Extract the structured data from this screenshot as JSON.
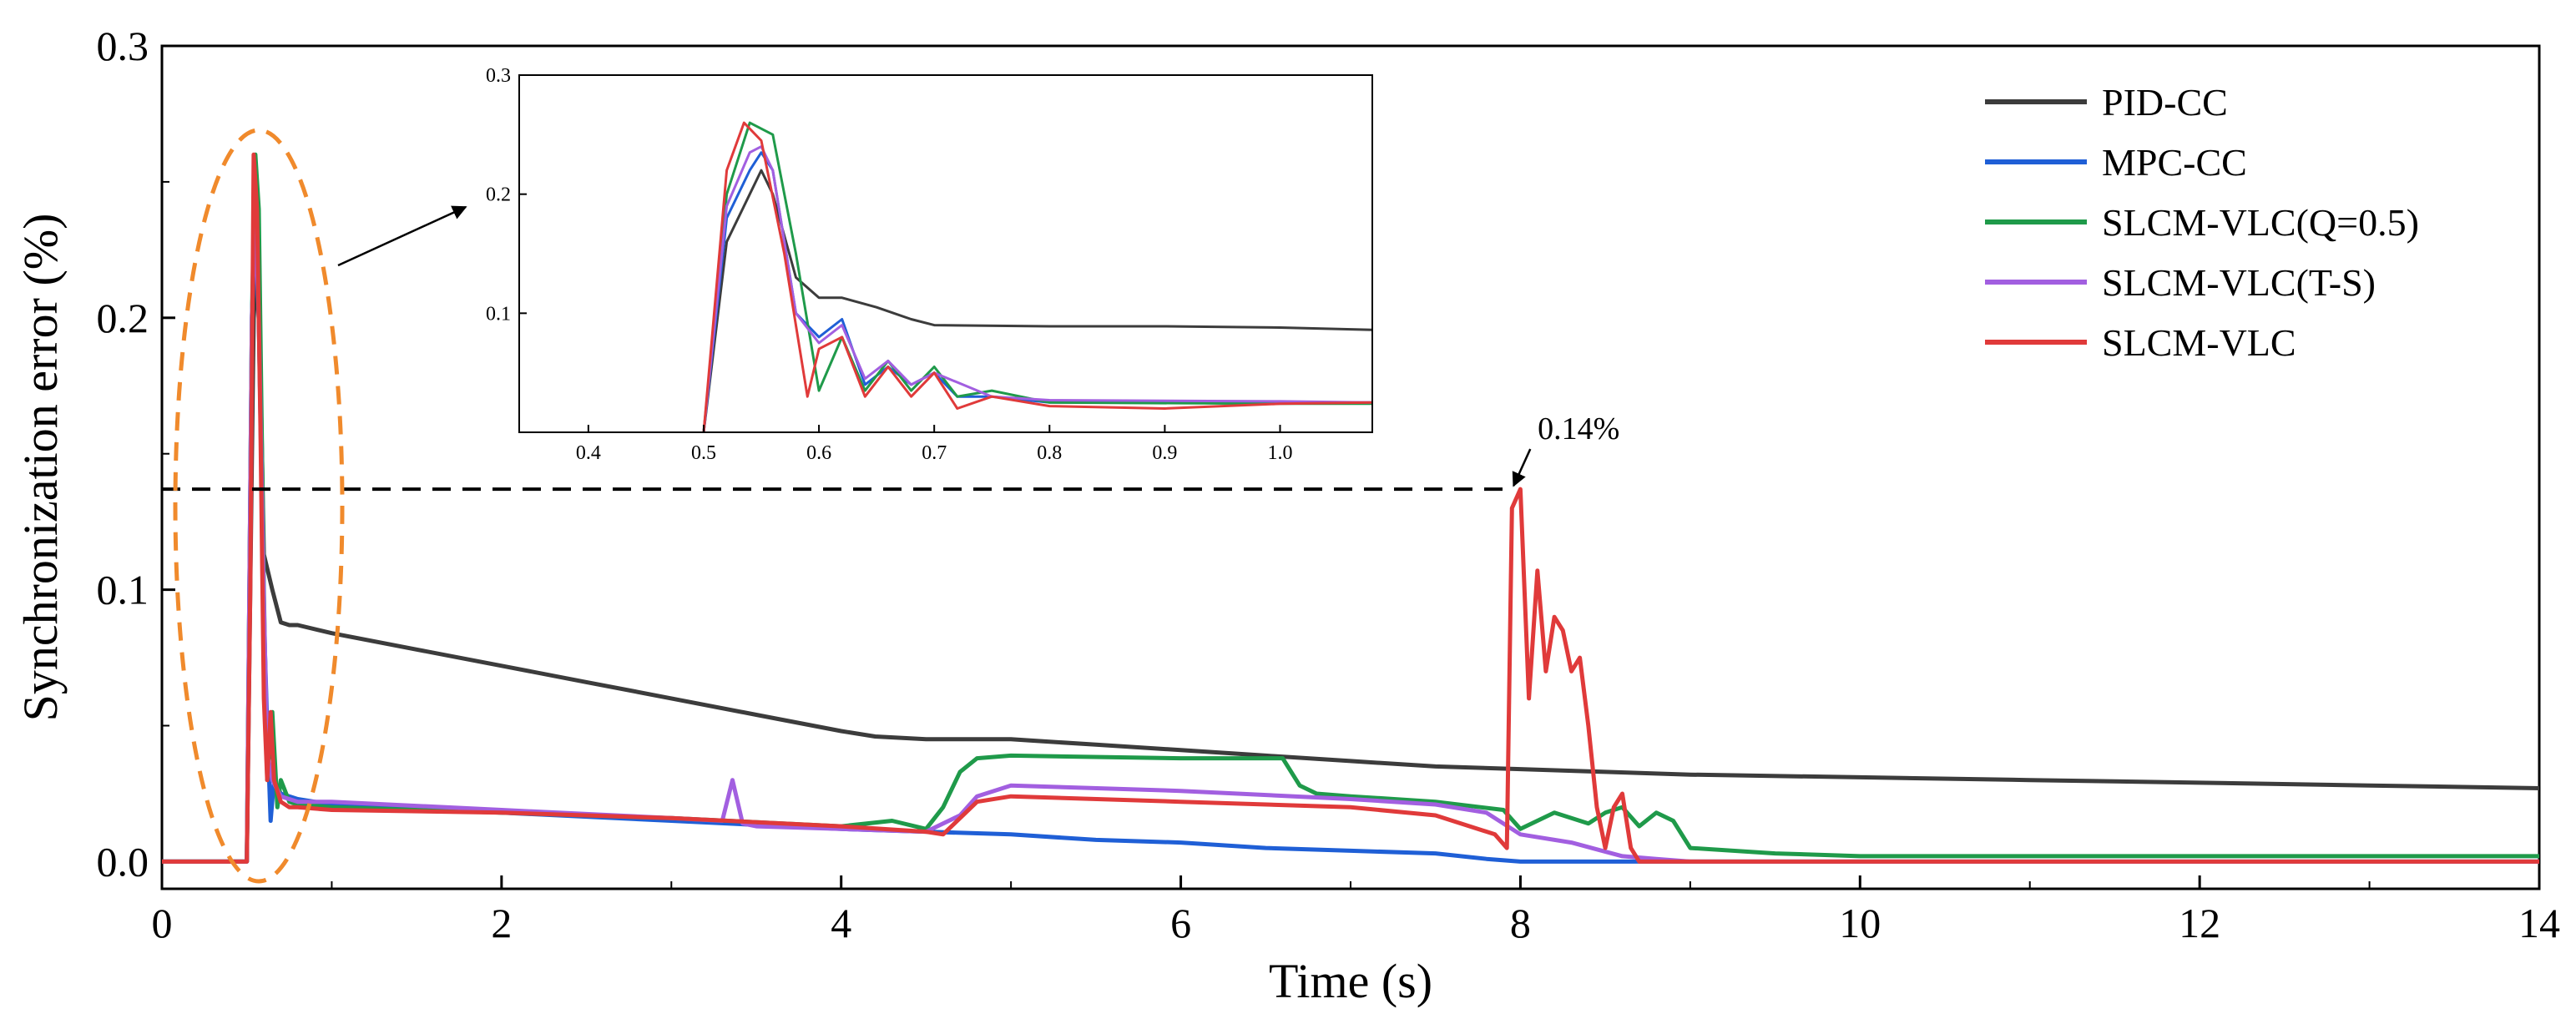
{
  "chart_data": [
    {
      "id": "main",
      "type": "line",
      "title": "",
      "xlabel": "Time (s)",
      "ylabel": "Synchronization error (%)",
      "xlim": [
        0,
        14
      ],
      "ylim": [
        -0.01,
        0.3
      ],
      "xticks": [
        0,
        2,
        4,
        6,
        8,
        10,
        12,
        14
      ],
      "xtick_labels": [
        "0",
        "2",
        "4",
        "6",
        "8",
        "10",
        "12",
        "14"
      ],
      "yticks": [
        0.0,
        0.1,
        0.2,
        0.3
      ],
      "ytick_labels": [
        "0.0",
        "0.1",
        "0.2",
        "0.3"
      ],
      "grid": false,
      "legend_position": "top-right",
      "series": [
        {
          "name": "PID-CC",
          "color": "#3c3c3c",
          "x": [
            0,
            0.5,
            0.52,
            0.54,
            0.56,
            0.58,
            0.6,
            0.65,
            0.7,
            0.75,
            0.8,
            1.0,
            1.5,
            2.0,
            2.5,
            3.0,
            3.5,
            4.0,
            4.2,
            4.5,
            5.0,
            5.5,
            6.0,
            6.5,
            7.0,
            7.5,
            8.0,
            8.5,
            9.0,
            10.0,
            11.0,
            12.0,
            13.0,
            14.0
          ],
          "y": [
            0,
            0,
            0.1,
            0.2,
            0.22,
            0.18,
            0.113,
            0.1,
            0.088,
            0.087,
            0.087,
            0.084,
            0.078,
            0.072,
            0.066,
            0.06,
            0.054,
            0.048,
            0.046,
            0.045,
            0.045,
            0.043,
            0.041,
            0.039,
            0.037,
            0.035,
            0.034,
            0.033,
            0.032,
            0.031,
            0.03,
            0.029,
            0.028,
            0.027
          ]
        },
        {
          "name": "MPC-CC",
          "color": "#1f5fd6",
          "x": [
            0,
            0.5,
            0.53,
            0.55,
            0.57,
            0.6,
            0.62,
            0.64,
            0.66,
            0.7,
            0.75,
            0.8,
            1.0,
            2.0,
            3.0,
            4.0,
            4.5,
            5.0,
            5.5,
            6.0,
            6.5,
            7.0,
            7.5,
            7.8,
            8.0,
            9.0,
            10.0,
            12.0,
            14.0
          ],
          "y": [
            0,
            0,
            0.2,
            0.24,
            0.2,
            0.09,
            0.05,
            0.015,
            0.03,
            0.025,
            0.024,
            0.023,
            0.021,
            0.018,
            0.015,
            0.012,
            0.011,
            0.01,
            0.008,
            0.007,
            0.005,
            0.004,
            0.003,
            0.001,
            0,
            0,
            0,
            0,
            0
          ]
        },
        {
          "name": "SLCM-VLC(Q=0.5)",
          "color": "#1f9a4a",
          "x": [
            0,
            0.5,
            0.53,
            0.55,
            0.57,
            0.6,
            0.62,
            0.65,
            0.68,
            0.7,
            0.75,
            0.8,
            1.0,
            2.0,
            3.0,
            4.0,
            4.3,
            4.5,
            4.6,
            4.7,
            4.8,
            5.0,
            6.0,
            6.6,
            6.7,
            6.8,
            7.0,
            7.5,
            7.9,
            8.0,
            8.2,
            8.4,
            8.5,
            8.6,
            8.7,
            8.8,
            8.9,
            9.0,
            9.5,
            10.0,
            11.0,
            12.0,
            13.0,
            14.0
          ],
          "y": [
            0,
            0,
            0.2,
            0.26,
            0.24,
            0.1,
            0.03,
            0.055,
            0.02,
            0.03,
            0.022,
            0.021,
            0.02,
            0.018,
            0.016,
            0.013,
            0.015,
            0.012,
            0.02,
            0.033,
            0.038,
            0.039,
            0.038,
            0.038,
            0.028,
            0.025,
            0.024,
            0.022,
            0.019,
            0.012,
            0.018,
            0.014,
            0.018,
            0.02,
            0.013,
            0.018,
            0.015,
            0.005,
            0.003,
            0.002,
            0.002,
            0.002,
            0.002,
            0.002
          ]
        },
        {
          "name": "SLCM-VLC(T-S)",
          "color": "#a25fe0",
          "x": [
            0,
            0.5,
            0.53,
            0.55,
            0.57,
            0.6,
            0.62,
            0.65,
            0.7,
            0.75,
            0.8,
            1.0,
            2.0,
            3.0,
            3.3,
            3.36,
            3.42,
            3.5,
            4.0,
            4.5,
            4.7,
            4.8,
            5.0,
            6.0,
            7.0,
            7.5,
            7.8,
            8.0,
            8.3,
            8.6,
            8.8,
            9.0,
            10.0,
            12.0,
            14.0
          ],
          "y": [
            0,
            0,
            0.2,
            0.24,
            0.2,
            0.096,
            0.04,
            0.03,
            0.024,
            0.023,
            0.022,
            0.022,
            0.019,
            0.016,
            0.015,
            0.03,
            0.014,
            0.013,
            0.012,
            0.011,
            0.017,
            0.024,
            0.028,
            0.026,
            0.023,
            0.021,
            0.018,
            0.01,
            0.007,
            0.002,
            0.001,
            0,
            0,
            0,
            0
          ]
        },
        {
          "name": "SLCM-VLC",
          "color": "#e03a3a",
          "x": [
            0,
            0.5,
            0.52,
            0.54,
            0.56,
            0.58,
            0.6,
            0.62,
            0.64,
            0.66,
            0.7,
            0.75,
            0.8,
            1.0,
            2.0,
            3.0,
            4.0,
            4.5,
            4.6,
            4.8,
            5.0,
            6.0,
            7.0,
            7.5,
            7.85,
            7.92,
            7.95,
            8.0,
            8.05,
            8.1,
            8.15,
            8.2,
            8.25,
            8.3,
            8.35,
            8.4,
            8.45,
            8.5,
            8.55,
            8.6,
            8.65,
            8.7,
            9.0,
            10.0,
            12.0,
            14.0
          ],
          "y": [
            0,
            0,
            0.1,
            0.26,
            0.24,
            0.16,
            0.06,
            0.03,
            0.055,
            0.03,
            0.022,
            0.02,
            0.02,
            0.019,
            0.018,
            0.016,
            0.013,
            0.011,
            0.01,
            0.022,
            0.024,
            0.022,
            0.02,
            0.017,
            0.01,
            0.005,
            0.13,
            0.137,
            0.06,
            0.107,
            0.07,
            0.09,
            0.085,
            0.07,
            0.075,
            0.05,
            0.02,
            0.005,
            0.02,
            0.025,
            0.005,
            0,
            0,
            0,
            0,
            0
          ]
        }
      ],
      "annotations": [
        {
          "text": "0.14%",
          "x": 7.95,
          "y": 0.137
        }
      ],
      "reference_line": {
        "y": 0.137,
        "x_start": 0,
        "x_end": 7.95,
        "style": "dashed"
      }
    },
    {
      "id": "inset",
      "type": "line",
      "xlim": [
        0.34,
        1.08
      ],
      "ylim": [
        0,
        0.3
      ],
      "xticks": [
        0.4,
        0.5,
        0.6,
        0.7,
        0.8,
        0.9,
        1.0
      ],
      "xtick_labels": [
        "0.4",
        "0.5",
        "0.6",
        "0.7",
        "0.8",
        "0.9",
        "1.0"
      ],
      "yticks": [
        0.1,
        0.2,
        0.3
      ],
      "ytick_labels": [
        "0.1",
        "0.2",
        "0.3"
      ],
      "series": [
        {
          "name": "PID-CC",
          "color": "#3c3c3c",
          "x": [
            0.5,
            0.52,
            0.54,
            0.55,
            0.56,
            0.58,
            0.6,
            0.62,
            0.65,
            0.68,
            0.7,
            0.8,
            0.9,
            1.0,
            1.08
          ],
          "y": [
            0.0,
            0.16,
            0.2,
            0.22,
            0.2,
            0.13,
            0.113,
            0.113,
            0.105,
            0.095,
            0.09,
            0.089,
            0.089,
            0.088,
            0.086
          ]
        },
        {
          "name": "MPC-CC",
          "color": "#1f5fd6",
          "x": [
            0.5,
            0.52,
            0.54,
            0.55,
            0.56,
            0.58,
            0.6,
            0.62,
            0.64,
            0.66,
            0.68,
            0.7,
            0.72,
            0.75,
            0.8,
            1.0,
            1.08
          ],
          "y": [
            0.0,
            0.18,
            0.22,
            0.235,
            0.22,
            0.1,
            0.08,
            0.095,
            0.04,
            0.055,
            0.04,
            0.05,
            0.03,
            0.03,
            0.025,
            0.025,
            0.025
          ]
        },
        {
          "name": "SLCM-VLC(Q=0.5)",
          "color": "#1f9a4a",
          "x": [
            0.5,
            0.52,
            0.54,
            0.56,
            0.58,
            0.6,
            0.62,
            0.64,
            0.66,
            0.68,
            0.7,
            0.72,
            0.75,
            0.8,
            1.0,
            1.08
          ],
          "y": [
            0.0,
            0.2,
            0.26,
            0.25,
            0.15,
            0.035,
            0.08,
            0.035,
            0.06,
            0.035,
            0.055,
            0.03,
            0.035,
            0.025,
            0.024,
            0.024
          ]
        },
        {
          "name": "SLCM-VLC(T-S)",
          "color": "#a25fe0",
          "x": [
            0.5,
            0.52,
            0.54,
            0.55,
            0.56,
            0.58,
            0.6,
            0.62,
            0.64,
            0.66,
            0.68,
            0.7,
            0.75,
            0.8,
            1.0,
            1.08
          ],
          "y": [
            0.0,
            0.19,
            0.235,
            0.24,
            0.22,
            0.1,
            0.075,
            0.09,
            0.045,
            0.06,
            0.04,
            0.05,
            0.03,
            0.027,
            0.026,
            0.025
          ]
        },
        {
          "name": "SLCM-VLC",
          "color": "#e03a3a",
          "x": [
            0.5,
            0.52,
            0.535,
            0.55,
            0.57,
            0.59,
            0.6,
            0.62,
            0.64,
            0.66,
            0.68,
            0.7,
            0.72,
            0.75,
            0.8,
            0.9,
            1.0,
            1.08
          ],
          "y": [
            0.0,
            0.22,
            0.26,
            0.245,
            0.15,
            0.03,
            0.07,
            0.08,
            0.03,
            0.055,
            0.03,
            0.05,
            0.02,
            0.03,
            0.022,
            0.02,
            0.024,
            0.025
          ]
        }
      ]
    }
  ]
}
